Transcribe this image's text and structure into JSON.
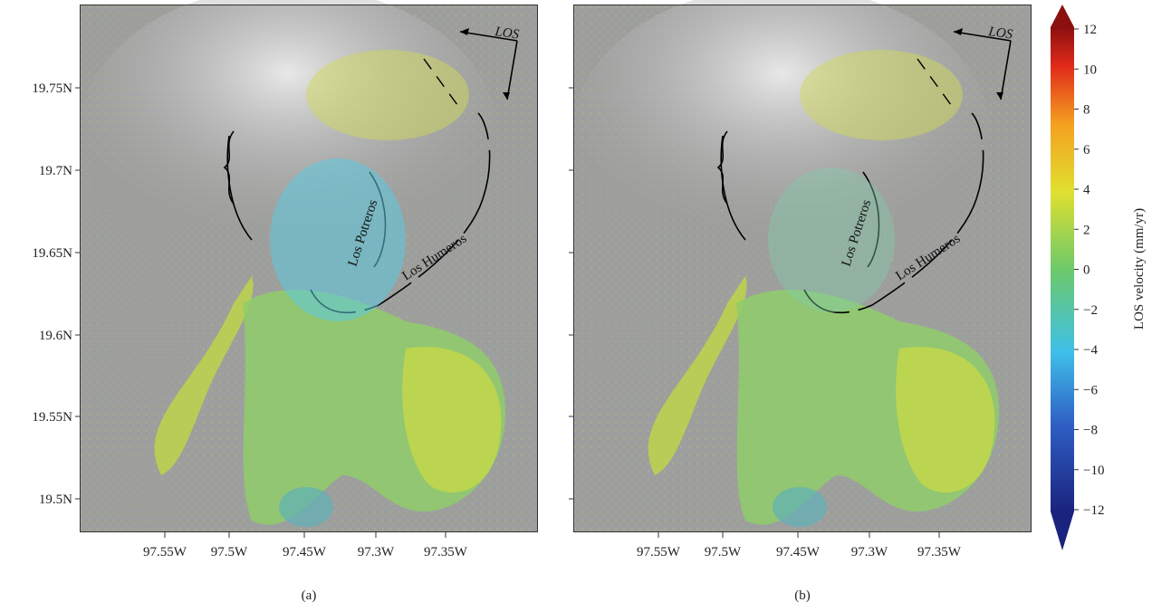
{
  "lat_ticks": [
    "19.75N",
    "19.7N",
    "19.65N",
    "19.6N",
    "19.55N",
    "19.5N"
  ],
  "lon_ticks": [
    "97.55W",
    "97.5W",
    "97.45W",
    "97.3W",
    "97.35W"
  ],
  "annotations": {
    "los": "LOS",
    "potreros": "Los Potreros",
    "humeros": "Los Humeros"
  },
  "panels": [
    {
      "label": "(a)"
    },
    {
      "label": "(b)"
    }
  ],
  "colorbar": {
    "label": "LOS velocity (mm/yr)",
    "lim": [
      -12,
      12
    ],
    "ticks": [
      {
        "value": -12,
        "label": "−12"
      },
      {
        "value": -10,
        "label": "−10"
      },
      {
        "value": -8,
        "label": "−8"
      },
      {
        "value": -6,
        "label": "−6"
      },
      {
        "value": -4,
        "label": "−4"
      },
      {
        "value": -2,
        "label": "−2"
      },
      0,
      2,
      4,
      6,
      8,
      10,
      12
    ]
  }
}
